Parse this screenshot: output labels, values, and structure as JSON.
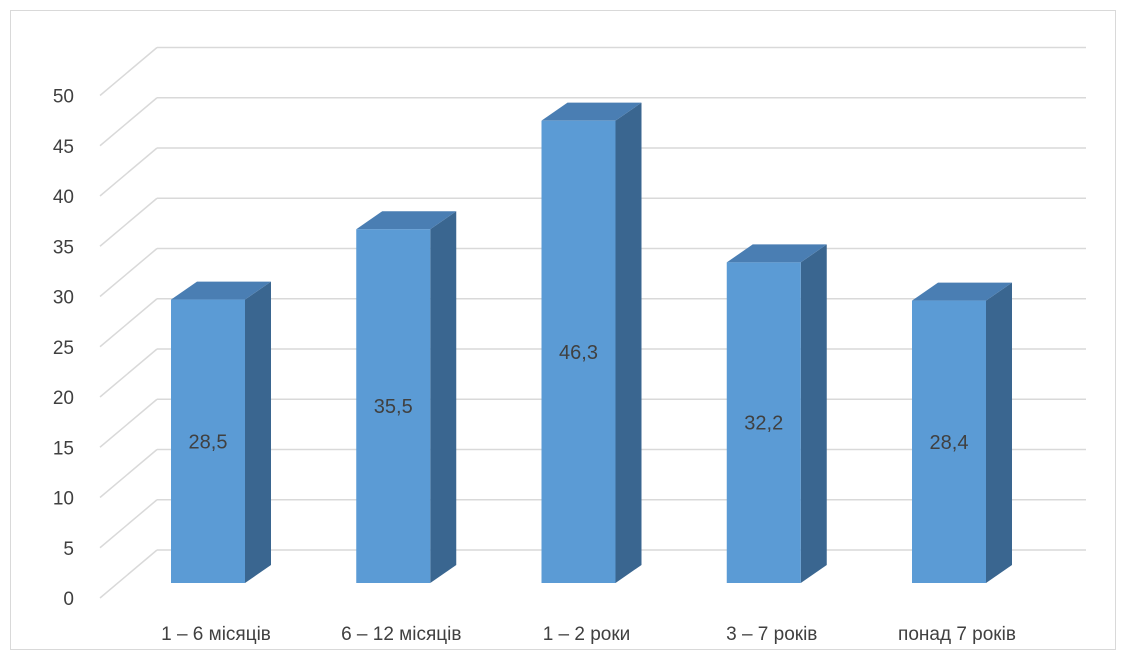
{
  "chart_data": {
    "type": "bar",
    "style": "3d-column",
    "categories": [
      "1 – 6 місяців",
      "6 – 12 місяців",
      "1 – 2 роки",
      "3 – 7 років",
      "понад 7 років"
    ],
    "values": [
      28.5,
      35.5,
      46.3,
      32.2,
      28.4
    ],
    "value_labels": [
      "28,5",
      "35,5",
      "46,3",
      "32,2",
      "28,4"
    ],
    "ylim": [
      0,
      50
    ],
    "yticks": [
      0,
      5,
      10,
      15,
      20,
      25,
      30,
      35,
      40,
      45,
      50
    ],
    "grid": true,
    "legend": "none",
    "colors": {
      "front": "#5b9bd5",
      "top": "#4a7eb3",
      "side": "#3a6690",
      "grid": "#d9d9d9"
    }
  }
}
